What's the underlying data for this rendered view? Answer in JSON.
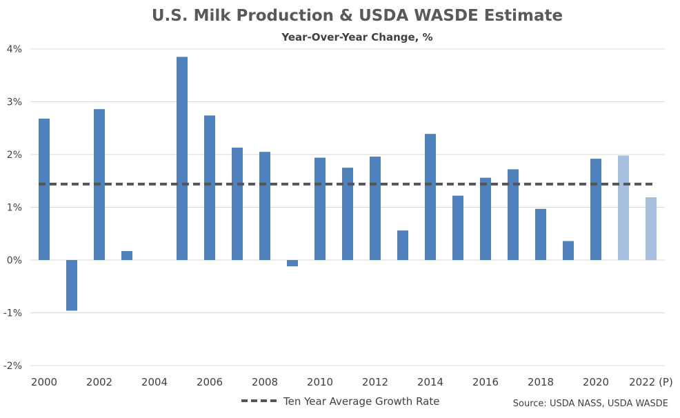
{
  "chart_data": {
    "type": "bar",
    "title": "U.S. Milk Production & USDA WASDE Estimate",
    "subtitle": "Year-Over-Year Change, %",
    "categories": [
      "2000",
      "2001",
      "2002",
      "2003",
      "2004",
      "2005",
      "2006",
      "2007",
      "2008",
      "2009",
      "2010",
      "2011",
      "2012",
      "2013",
      "2014",
      "2015",
      "2016",
      "2017",
      "2018",
      "2019",
      "2020",
      "2021",
      "2022"
    ],
    "x_tick_labels": [
      "2000",
      "",
      "2002",
      "",
      "2004",
      "",
      "2006",
      "",
      "2008",
      "",
      "2010",
      "",
      "2012",
      "",
      "2014",
      "",
      "2016",
      "",
      "2018",
      "",
      "2020",
      "",
      "2022 (P)"
    ],
    "values": [
      2.68,
      -0.96,
      2.86,
      0.17,
      0.0,
      3.85,
      2.74,
      2.13,
      2.05,
      -0.12,
      1.94,
      1.75,
      1.96,
      0.56,
      2.39,
      1.22,
      1.56,
      1.72,
      0.97,
      0.36,
      1.92,
      1.98,
      1.19
    ],
    "estimated": [
      false,
      false,
      false,
      false,
      false,
      false,
      false,
      false,
      false,
      false,
      false,
      false,
      false,
      false,
      false,
      false,
      false,
      false,
      false,
      false,
      false,
      true,
      true
    ],
    "bar_color": "#4f81bd",
    "estimate_color": "#a7c0df",
    "ylim": [
      -2,
      4
    ],
    "y_ticks": [
      -2,
      -1,
      0,
      1,
      2,
      3,
      4
    ],
    "y_tick_labels": [
      "-2%",
      "-1%",
      "0%",
      "1%",
      "2%",
      "3%",
      "4%"
    ],
    "grid": true,
    "reference_line": {
      "name": "Ten Year Average Growth Rate",
      "value": 1.44,
      "color": "#555555",
      "style": "dashed"
    },
    "legend": {
      "position": "bottom-center",
      "entries": [
        "Ten Year Average Growth Rate"
      ]
    },
    "source": "Source: USDA NASS, USDA WASDE"
  }
}
